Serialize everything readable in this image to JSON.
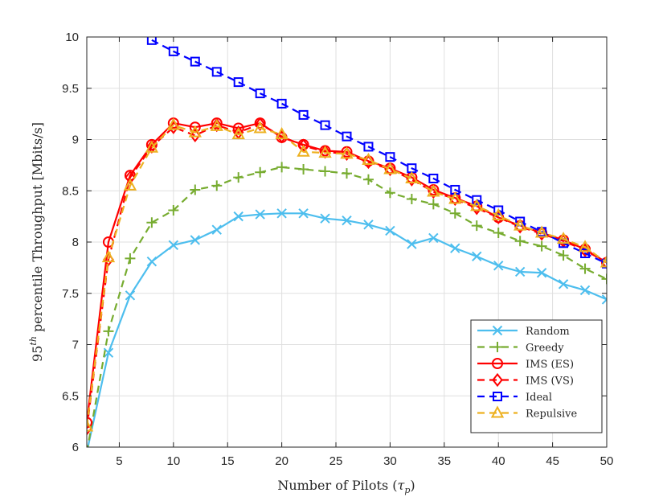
{
  "chart_data": {
    "type": "line",
    "xlabel": "Number of Pilots (",
    "xlabel_var": "τ",
    "xlabel_sub": "p",
    "xlabel_end": ")",
    "ylabel_base": "95",
    "ylabel_sup": "th",
    "ylabel_rest": " percentile Throughput [Mbits/s]",
    "xlim": [
      2,
      50
    ],
    "ylim": [
      6,
      10
    ],
    "xticks": [
      5,
      10,
      15,
      20,
      25,
      30,
      35,
      40,
      45,
      50
    ],
    "xtick_labels": [
      "5",
      "10",
      "15",
      "20",
      "25",
      "30",
      "35",
      "40",
      "45",
      "50"
    ],
    "yticks": [
      6,
      6.5,
      7,
      7.5,
      8,
      8.5,
      9,
      9.5,
      10
    ],
    "ytick_labels": [
      "6",
      "6.5",
      "7",
      "7.5",
      "8",
      "8.5",
      "9",
      "9.5",
      "10"
    ],
    "grid": true,
    "legend_position": "bottom-right",
    "x": [
      2,
      4,
      6,
      8,
      10,
      12,
      14,
      16,
      18,
      20,
      22,
      24,
      26,
      28,
      30,
      32,
      34,
      36,
      38,
      40,
      42,
      44,
      46,
      48,
      50
    ],
    "series": [
      {
        "name": "Random",
        "color": "#4DBEEE",
        "dash": "solid",
        "marker": "x",
        "values": [
          5.95,
          6.92,
          7.48,
          7.81,
          7.97,
          8.02,
          8.12,
          8.25,
          8.27,
          8.28,
          8.28,
          8.23,
          8.21,
          8.17,
          8.11,
          7.98,
          8.04,
          7.94,
          7.86,
          7.77,
          7.71,
          7.7,
          7.59,
          7.53,
          7.44
        ]
      },
      {
        "name": "Greedy",
        "color": "#77AC30",
        "dash": "dashed",
        "marker": "plus",
        "values": [
          5.95,
          7.13,
          7.84,
          8.19,
          8.31,
          8.51,
          8.55,
          8.63,
          8.68,
          8.73,
          8.71,
          8.69,
          8.67,
          8.61,
          8.48,
          8.42,
          8.37,
          8.28,
          8.16,
          8.09,
          8.01,
          7.96,
          7.87,
          7.74,
          7.64
        ]
      },
      {
        "name": "IMS (ES)",
        "color": "#FF0000",
        "dash": "solid",
        "marker": "circle",
        "values": [
          6.24,
          8.0,
          8.65,
          8.95,
          9.16,
          9.12,
          9.16,
          9.11,
          9.16,
          9.02,
          8.95,
          8.89,
          8.88,
          8.79,
          8.72,
          8.63,
          8.51,
          8.43,
          8.35,
          8.24,
          8.16,
          8.09,
          8.02,
          7.93,
          7.8
        ]
      },
      {
        "name": "IMS (VS)",
        "color": "#FF0000",
        "dash": "dashed",
        "marker": "diamond",
        "values": [
          6.18,
          7.83,
          8.63,
          8.93,
          9.12,
          9.04,
          9.14,
          9.07,
          9.15,
          9.03,
          8.94,
          8.88,
          8.86,
          8.78,
          8.71,
          8.61,
          8.49,
          8.42,
          8.33,
          8.24,
          8.15,
          8.08,
          8.01,
          7.92,
          7.8
        ]
      },
      {
        "name": "Ideal",
        "color": "#0000FF",
        "dash": "dashed",
        "marker": "square",
        "values": [
          null,
          null,
          null,
          9.97,
          9.86,
          9.76,
          9.66,
          9.56,
          9.45,
          9.35,
          9.24,
          9.14,
          9.03,
          8.93,
          8.83,
          8.72,
          8.62,
          8.51,
          8.41,
          8.31,
          8.2,
          8.1,
          7.99,
          7.89,
          7.79
        ]
      },
      {
        "name": "Repulsive",
        "color": "#EDB120",
        "dash": "dashed",
        "marker": "triangle",
        "values": [
          6.2,
          7.85,
          8.55,
          8.92,
          9.14,
          9.07,
          9.13,
          9.05,
          9.11,
          9.05,
          8.88,
          8.87,
          8.86,
          8.8,
          8.71,
          8.62,
          8.49,
          8.42,
          8.35,
          8.26,
          8.16,
          8.09,
          8.03,
          7.95,
          7.8
        ]
      }
    ]
  }
}
